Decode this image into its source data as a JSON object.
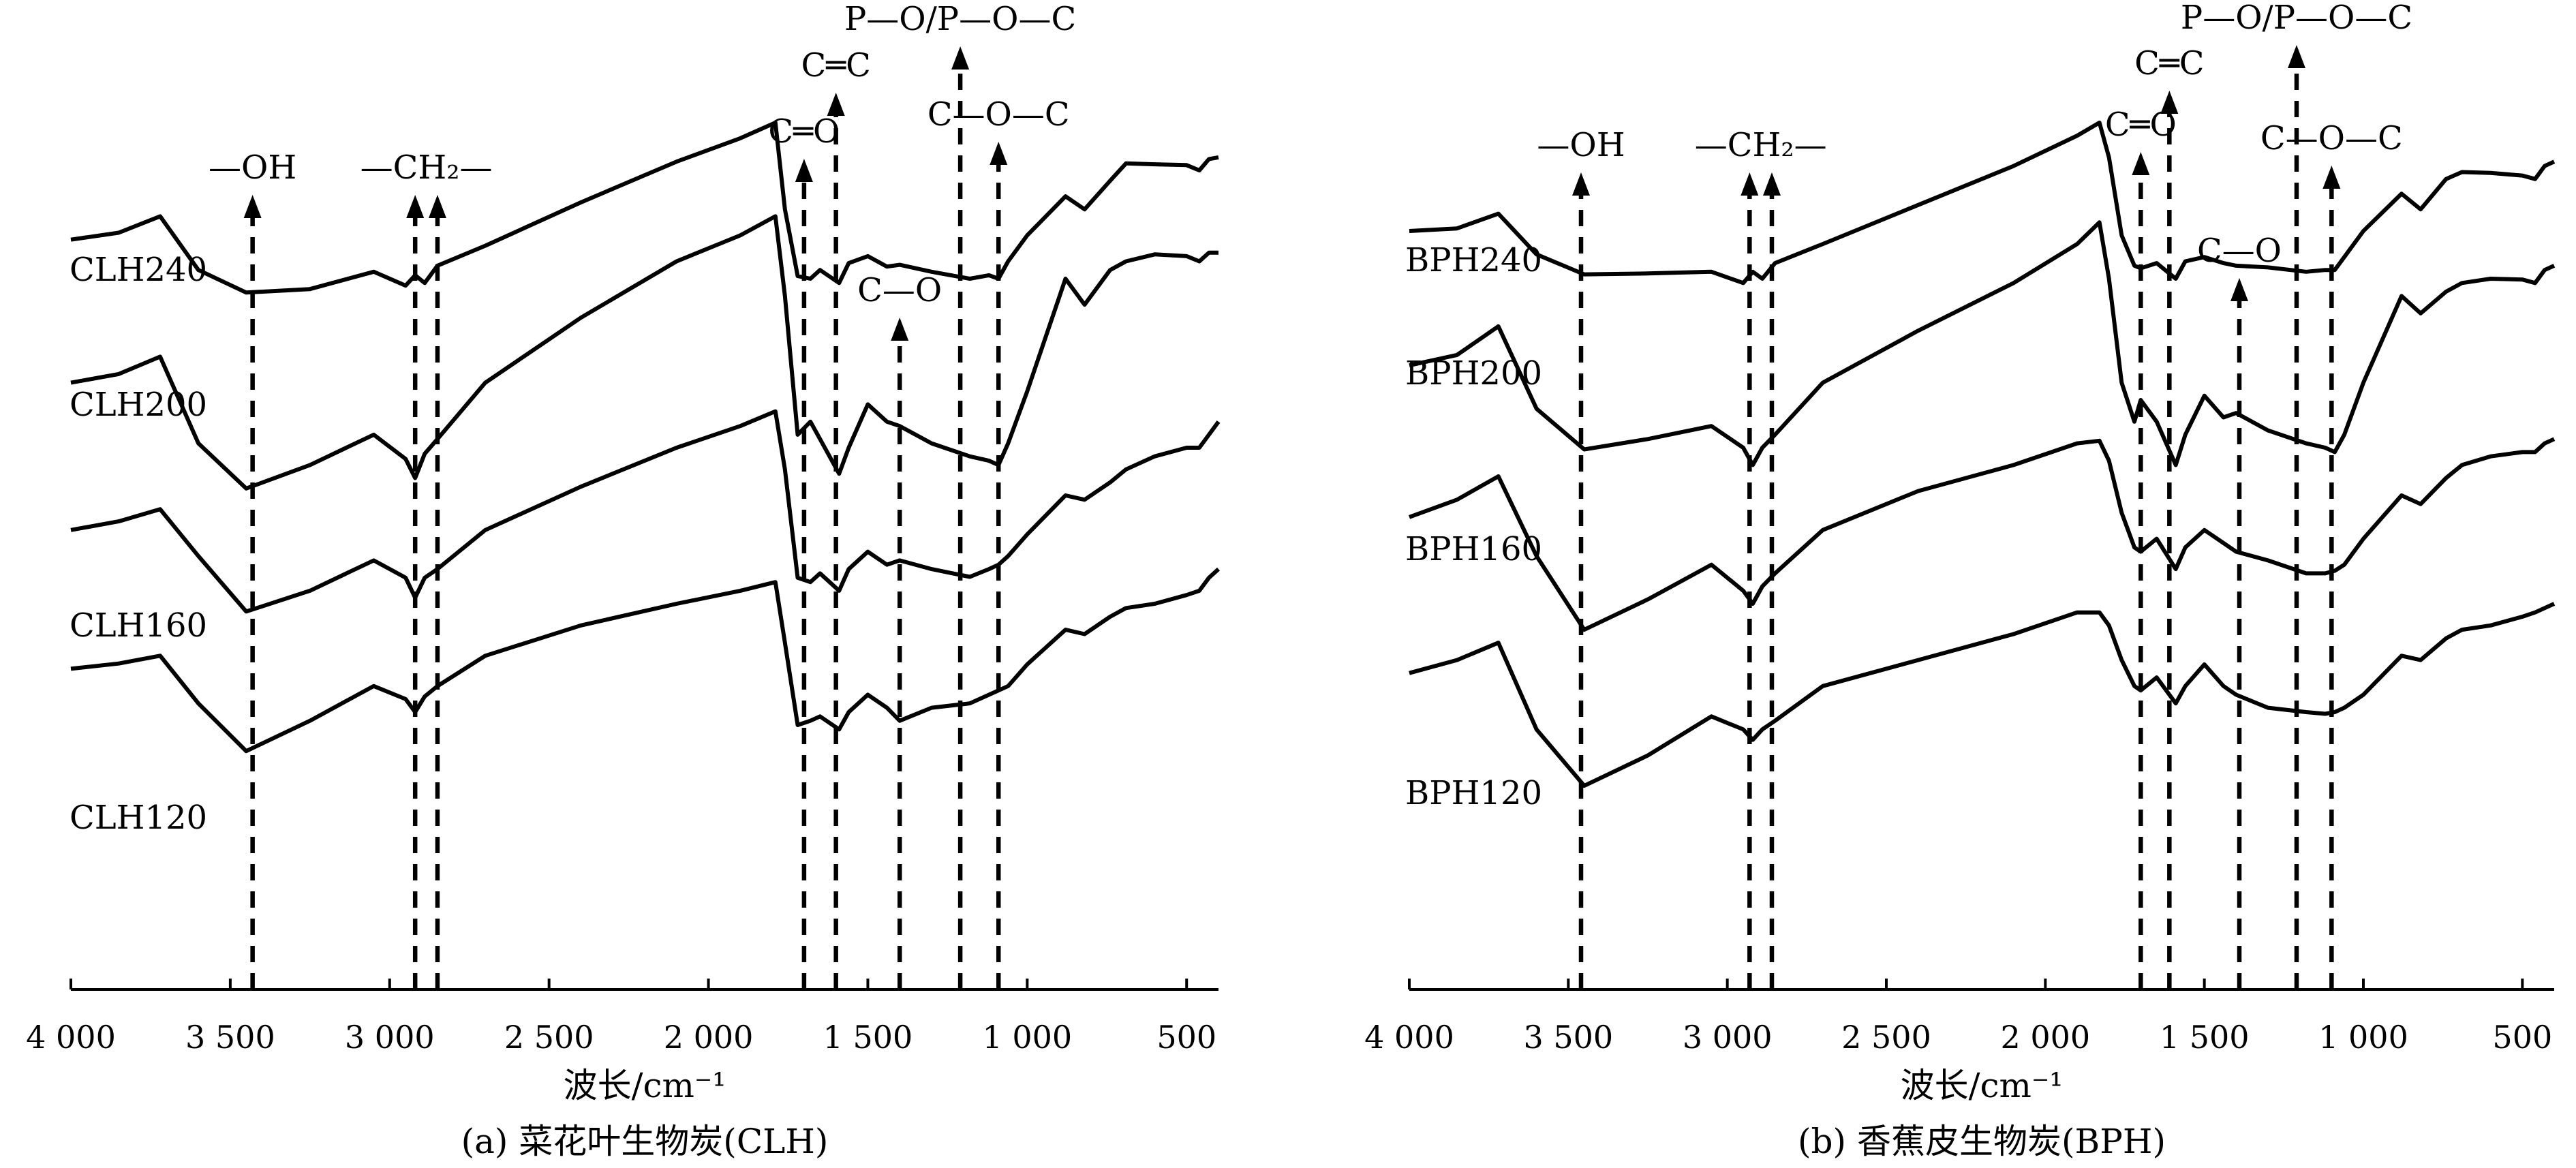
{
  "chart_data": [
    {
      "type": "line",
      "xlabel": "波长/cm⁻¹",
      "caption": "(a)  菜花叶生物炭(CLH)",
      "xlim": [
        4000,
        400
      ],
      "xticks": [
        4000,
        3500,
        3000,
        2500,
        2000,
        1500,
        1000,
        500
      ],
      "xtick_labels": [
        "4 000",
        "3 500",
        "3 000",
        "2 500",
        "2 000",
        "1 500",
        "1 000",
        "500"
      ],
      "series": [
        {
          "name": "CLH240",
          "x": [
            4000,
            3850,
            3720,
            3600,
            3450,
            3250,
            3050,
            2950,
            2920,
            2890,
            2850,
            2700,
            2400,
            2100,
            1900,
            1790,
            1760,
            1720,
            1680,
            1650,
            1590,
            1560,
            1500,
            1440,
            1400,
            1300,
            1180,
            1120,
            1090,
            1060,
            1000,
            880,
            820,
            740,
            690,
            600,
            500,
            460,
            430,
            400
          ],
          "y": [
            86.5,
            87.3,
            89.2,
            83.0,
            80.4,
            80.8,
            82.8,
            81.2,
            82.4,
            81.5,
            83.5,
            85.8,
            90.8,
            95.5,
            98.2,
            100.0,
            90.0,
            82.3,
            82.0,
            83.0,
            81.5,
            83.8,
            84.6,
            83.4,
            83.6,
            82.8,
            82.0,
            82.4,
            82.0,
            84.0,
            87.0,
            91.5,
            90.0,
            93.3,
            95.3,
            95.2,
            95.1,
            94.5,
            95.8,
            96.0
          ]
        },
        {
          "name": "CLH200",
          "x": [
            4000,
            3850,
            3720,
            3600,
            3450,
            3250,
            3050,
            2950,
            2920,
            2890,
            2850,
            2700,
            2400,
            2100,
            1900,
            1790,
            1760,
            1720,
            1680,
            1650,
            1590,
            1560,
            1500,
            1440,
            1400,
            1300,
            1180,
            1120,
            1090,
            1060,
            1000,
            880,
            820,
            740,
            690,
            600,
            500,
            460,
            430,
            400
          ],
          "y": [
            70.0,
            71.0,
            73.0,
            63.0,
            57.8,
            60.5,
            64.0,
            61.2,
            59.0,
            61.8,
            63.5,
            70.0,
            77.5,
            84.0,
            87.0,
            89.2,
            80.0,
            64.0,
            65.5,
            63.5,
            59.5,
            62.5,
            67.5,
            65.5,
            65.0,
            63.0,
            61.5,
            61.0,
            60.5,
            63.0,
            69.0,
            82.0,
            79.0,
            83.0,
            84.0,
            84.8,
            84.6,
            84.0,
            85.0,
            85.0
          ]
        },
        {
          "name": "CLH160",
          "x": [
            4000,
            3850,
            3720,
            3600,
            3450,
            3250,
            3050,
            2950,
            2920,
            2890,
            2850,
            2700,
            2400,
            2100,
            1900,
            1790,
            1760,
            1720,
            1680,
            1650,
            1590,
            1560,
            1500,
            1440,
            1400,
            1300,
            1180,
            1120,
            1090,
            1060,
            1000,
            880,
            820,
            740,
            690,
            600,
            500,
            460,
            430,
            400
          ],
          "y": [
            53.0,
            54.0,
            55.4,
            50.0,
            43.6,
            46.0,
            49.5,
            47.5,
            45.2,
            47.5,
            48.5,
            53.0,
            58.0,
            62.5,
            65.0,
            66.7,
            60.0,
            47.5,
            47.0,
            48.0,
            46.0,
            48.5,
            50.5,
            49.0,
            49.5,
            48.5,
            47.6,
            48.5,
            49.0,
            50.0,
            52.5,
            57.0,
            56.5,
            58.5,
            60.0,
            61.5,
            62.5,
            62.5,
            64.0,
            65.5
          ]
        },
        {
          "name": "CLH120",
          "x": [
            4000,
            3850,
            3720,
            3600,
            3450,
            3250,
            3050,
            2950,
            2920,
            2890,
            2850,
            2700,
            2400,
            2100,
            1900,
            1790,
            1760,
            1720,
            1680,
            1650,
            1590,
            1560,
            1500,
            1440,
            1400,
            1300,
            1180,
            1120,
            1090,
            1060,
            1000,
            880,
            820,
            740,
            690,
            600,
            500,
            460,
            430,
            400
          ],
          "y": [
            37.0,
            37.6,
            38.5,
            33.0,
            27.5,
            31.0,
            35.0,
            33.5,
            32.0,
            33.8,
            35.0,
            38.5,
            42.0,
            44.5,
            46.0,
            47.0,
            40.0,
            30.5,
            31.0,
            31.5,
            30.0,
            32.0,
            34.0,
            32.5,
            31.0,
            32.5,
            33.0,
            34.0,
            34.5,
            35.0,
            37.5,
            41.5,
            41.0,
            43.0,
            44.0,
            44.5,
            45.5,
            46.0,
            47.5,
            48.5
          ]
        }
      ],
      "annotations": [
        {
          "text": "—OH",
          "x": 3430
        },
        {
          "text": "—CH₂—",
          "x": 2920
        },
        {
          "text": "—CH₂—",
          "x": 2850
        },
        {
          "text": "C═O",
          "x": 1700
        },
        {
          "text": "C═C",
          "x": 1600
        },
        {
          "text": "C—O",
          "x": 1400
        },
        {
          "text": "P—O/P—O—C",
          "x": 1210
        },
        {
          "text": "C—O—C",
          "x": 1090
        }
      ],
      "grid": false
    },
    {
      "type": "line",
      "xlabel": "波长/cm⁻¹",
      "caption": "(b)  香蕉皮生物炭(BPH)",
      "xlim": [
        4000,
        400
      ],
      "xticks": [
        4000,
        3500,
        3000,
        2500,
        2000,
        1500,
        1000,
        500
      ],
      "xtick_labels": [
        "4 000",
        "3 500",
        "3 000",
        "2 500",
        "2 000",
        "1 500",
        "1 000",
        "500"
      ],
      "series": [
        {
          "name": "BPH240",
          "x": [
            4000,
            3850,
            3720,
            3600,
            3450,
            3250,
            3050,
            2950,
            2920,
            2890,
            2850,
            2700,
            2400,
            2100,
            1900,
            1830,
            1800,
            1760,
            1720,
            1700,
            1650,
            1590,
            1560,
            1500,
            1440,
            1400,
            1300,
            1180,
            1120,
            1090,
            1060,
            1000,
            880,
            820,
            740,
            690,
            600,
            500,
            460,
            430,
            400
          ],
          "y": [
            87.5,
            87.8,
            89.5,
            84.8,
            82.5,
            82.6,
            82.8,
            81.5,
            82.8,
            82.0,
            83.8,
            86.0,
            90.5,
            95.0,
            98.5,
            100.0,
            96.0,
            87.0,
            83.5,
            83.2,
            83.8,
            82.0,
            84.0,
            84.5,
            83.8,
            83.5,
            83.3,
            82.8,
            83.0,
            83.0,
            84.5,
            87.5,
            91.8,
            90.0,
            93.5,
            94.3,
            94.2,
            93.9,
            93.5,
            95.0,
            95.5
          ]
        },
        {
          "name": "BPH200",
          "x": [
            4000,
            3850,
            3720,
            3600,
            3450,
            3250,
            3050,
            2950,
            2920,
            2890,
            2850,
            2700,
            2400,
            2100,
            1900,
            1830,
            1800,
            1760,
            1720,
            1700,
            1650,
            1590,
            1560,
            1500,
            1440,
            1400,
            1300,
            1180,
            1120,
            1090,
            1060,
            1000,
            880,
            820,
            740,
            690,
            600,
            500,
            460,
            430,
            400
          ],
          "y": [
            72.0,
            73.2,
            76.5,
            67.0,
            62.3,
            63.5,
            65.0,
            62.5,
            60.5,
            62.5,
            64.0,
            70.0,
            76.0,
            81.5,
            86.0,
            88.5,
            82.0,
            70.0,
            65.5,
            68.0,
            65.5,
            60.5,
            64.0,
            68.5,
            66.0,
            66.5,
            64.5,
            63.0,
            62.5,
            62.0,
            64.0,
            70.0,
            80.0,
            78.0,
            80.5,
            81.5,
            82.0,
            81.9,
            81.5,
            83.0,
            83.5
          ]
        },
        {
          "name": "BPH160",
          "x": [
            4000,
            3850,
            3720,
            3600,
            3450,
            3250,
            3050,
            2950,
            2920,
            2890,
            2850,
            2700,
            2400,
            2100,
            1900,
            1830,
            1800,
            1760,
            1720,
            1700,
            1650,
            1590,
            1560,
            1500,
            1440,
            1400,
            1300,
            1180,
            1120,
            1090,
            1060,
            1000,
            880,
            820,
            740,
            690,
            600,
            500,
            460,
            430,
            400
          ],
          "y": [
            54.5,
            56.5,
            59.2,
            50.0,
            41.5,
            45.0,
            49.0,
            46.0,
            44.5,
            46.5,
            48.0,
            53.0,
            57.5,
            60.5,
            63.0,
            63.3,
            61.0,
            55.0,
            51.0,
            50.5,
            52.0,
            48.5,
            51.0,
            53.0,
            51.5,
            50.5,
            49.5,
            48.0,
            48.0,
            48.3,
            49.0,
            52.0,
            57.0,
            56.0,
            59.0,
            60.5,
            61.5,
            62.0,
            62.0,
            63.0,
            63.5
          ]
        },
        {
          "name": "BPH120",
          "x": [
            4000,
            3850,
            3720,
            3600,
            3450,
            3250,
            3050,
            2950,
            2920,
            2890,
            2850,
            2700,
            2400,
            2100,
            1900,
            1830,
            1800,
            1760,
            1720,
            1700,
            1650,
            1590,
            1560,
            1500,
            1440,
            1400,
            1300,
            1180,
            1120,
            1090,
            1060,
            1000,
            880,
            820,
            740,
            690,
            600,
            500,
            460,
            430,
            400
          ],
          "y": [
            36.5,
            38.0,
            40.0,
            30.0,
            23.5,
            27.0,
            31.5,
            30.0,
            28.8,
            30.0,
            31.0,
            35.0,
            38.0,
            41.0,
            43.5,
            43.5,
            42.0,
            38.0,
            35.0,
            34.5,
            36.0,
            33.0,
            35.0,
            37.5,
            35.0,
            34.0,
            32.5,
            32.0,
            31.8,
            32.0,
            32.5,
            34.0,
            38.5,
            38.0,
            40.5,
            41.5,
            42.0,
            43.0,
            43.5,
            44.0,
            44.5
          ]
        }
      ],
      "annotations": [
        {
          "text": "—OH",
          "x": 3460
        },
        {
          "text": "—CH₂—",
          "x": 2930
        },
        {
          "text": "—CH₂—",
          "x": 2860
        },
        {
          "text": "C═O",
          "x": 1700
        },
        {
          "text": "C═C",
          "x": 1610
        },
        {
          "text": "C—O",
          "x": 1390
        },
        {
          "text": "P—O/P—O—C",
          "x": 1210
        },
        {
          "text": "C—O—C",
          "x": 1100
        }
      ],
      "grid": false
    }
  ]
}
